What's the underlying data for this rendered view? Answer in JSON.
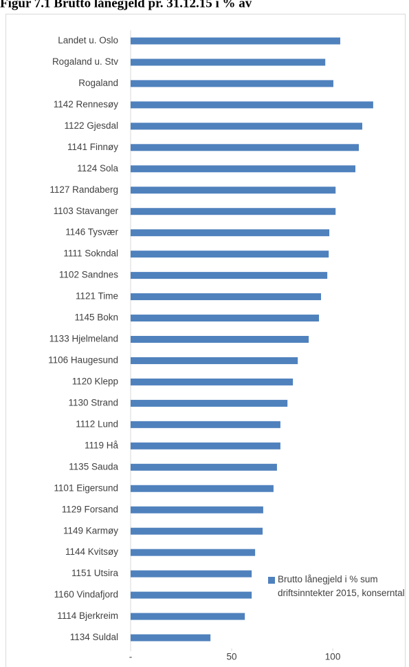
{
  "chart_data": {
    "type": "bar",
    "orientation": "horizontal",
    "title": "Figur 7.1 Brutto lånegjeld pr. 31.12.15 i % av",
    "categories": [
      "Landet u. Oslo",
      "Rogaland u. Stv",
      "Rogaland",
      "1142 Rennesøy",
      "1122 Gjesdal",
      "1141 Finnøy",
      "1124 Sola",
      "1127 Randaberg",
      "1103 Stavanger",
      "1146 Tysvær",
      "1111 Sokndal",
      "1102 Sandnes",
      "1121 Time",
      "1145 Bokn",
      "1133 Hjelmeland",
      "1106 Haugesund",
      "1120 Klepp",
      "1130 Strand",
      "1112 Lund",
      "1119 Hå",
      "1135 Sauda",
      "1101 Eigersund",
      "1129 Forsand",
      "1149 Karmøy",
      "1144 Kvitsøy",
      "1151 Utsira",
      "1160 Vindafjord",
      "1114 Bjerkreim",
      "1134 Suldal"
    ],
    "series": [
      {
        "name": "Brutto lånegjeld i % sum driftsinntekter 2015, konserntal",
        "color": "#4f81bd",
        "values": [
          103.7,
          96.3,
          100.3,
          120.0,
          114.6,
          112.9,
          111.2,
          101.4,
          101.4,
          98.3,
          98.0,
          97.3,
          94.2,
          93.2,
          88.1,
          82.7,
          80.3,
          77.6,
          74.1,
          74.1,
          72.4,
          70.7,
          65.6,
          65.3,
          61.6,
          59.9,
          59.9,
          56.5,
          39.5
        ]
      }
    ],
    "xlim": [
      0,
      135
    ],
    "xticks": [
      {
        "value": 0,
        "label": "-"
      },
      50,
      100
    ],
    "legend": "bottom-right"
  }
}
